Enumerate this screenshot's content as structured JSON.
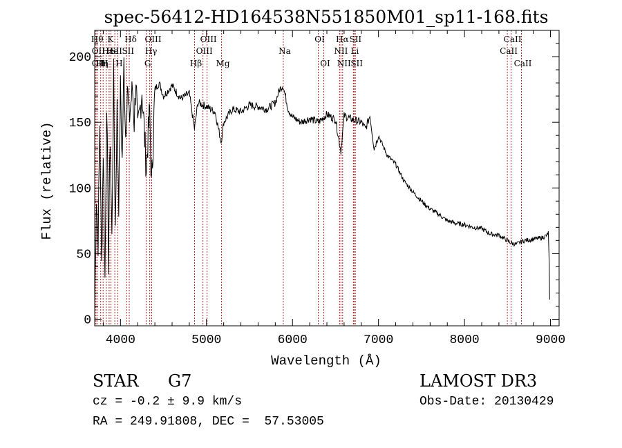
{
  "chart_data": {
    "type": "line",
    "title": "spec-56412-HD164538N551850M01_sp11-168.fits",
    "xlabel": "Wavelength (Å)",
    "ylabel": "Flux (relative)",
    "xlim": [
      3700,
      9100
    ],
    "ylim": [
      -5,
      220
    ],
    "xticks": [
      4000,
      5000,
      6000,
      7000,
      8000,
      9000
    ],
    "yticks": [
      0,
      50,
      100,
      150,
      200
    ],
    "grid": false,
    "series": [
      {
        "name": "flux",
        "x": [
          3700,
          3720,
          3740,
          3760,
          3780,
          3800,
          3820,
          3840,
          3860,
          3880,
          3900,
          3920,
          3940,
          3960,
          3980,
          4000,
          4020,
          4040,
          4060,
          4080,
          4100,
          4120,
          4140,
          4160,
          4180,
          4200,
          4250,
          4300,
          4340,
          4360,
          4400,
          4450,
          4500,
          4600,
          4700,
          4800,
          4860,
          4900,
          5000,
          5100,
          5170,
          5200,
          5300,
          5400,
          5500,
          5600,
          5700,
          5800,
          5850,
          5890,
          5950,
          6000,
          6100,
          6200,
          6300,
          6400,
          6500,
          6563,
          6600,
          6700,
          6800,
          6850,
          6900,
          6950,
          7000,
          7100,
          7200,
          7300,
          7400,
          7500,
          7600,
          7700,
          7800,
          7900,
          8000,
          8100,
          8200,
          8300,
          8400,
          8498,
          8542,
          8600,
          8662,
          8700,
          8800,
          8900,
          8960,
          8975,
          8985,
          8990
        ],
        "values": [
          5,
          95,
          60,
          150,
          40,
          130,
          30,
          170,
          45,
          140,
          60,
          185,
          70,
          160,
          90,
          175,
          120,
          195,
          140,
          180,
          150,
          165,
          175,
          150,
          185,
          140,
          175,
          115,
          160,
          100,
          175,
          180,
          170,
          178,
          168,
          172,
          145,
          165,
          162,
          158,
          135,
          150,
          160,
          158,
          163,
          162,
          160,
          165,
          175,
          178,
          160,
          154,
          150,
          153,
          150,
          156,
          152,
          128,
          155,
          152,
          150,
          145,
          155,
          130,
          140,
          125,
          118,
          105,
          97,
          90,
          84,
          80,
          75,
          73,
          72,
          70,
          69,
          65,
          64,
          60,
          58,
          57,
          59,
          60,
          61,
          62,
          64,
          66,
          40,
          15
        ]
      }
    ],
    "line_labels": [
      {
        "x": 3713,
        "label": "Hθ",
        "row": 0
      },
      {
        "x": 3727,
        "label": "OII",
        "row": 1
      },
      {
        "x": 3727,
        "label": "OII",
        "row": 2
      },
      {
        "x": 3770,
        "label": "Hη",
        "row": 2
      },
      {
        "x": 3798,
        "label": "H",
        "row": 2
      },
      {
        "x": 3835,
        "label": "Hε",
        "row": 1
      },
      {
        "x": 3868,
        "label": "K",
        "row": 0
      },
      {
        "x": 3889,
        "label": "He",
        "row": 1
      },
      {
        "x": 3934,
        "label": "SII",
        "row": 1
      },
      {
        "x": 3968,
        "label": "H",
        "row": 2
      },
      {
        "x": 4072,
        "label": "SII",
        "row": 1
      },
      {
        "x": 4102,
        "label": "Hδ",
        "row": 0
      },
      {
        "x": 4300,
        "label": "G",
        "row": 2
      },
      {
        "x": 4340,
        "label": "Hγ",
        "row": 1
      },
      {
        "x": 4363,
        "label": "OIII",
        "row": 0
      },
      {
        "x": 4861,
        "label": "Hβ",
        "row": 2
      },
      {
        "x": 4959,
        "label": "OIII",
        "row": 1
      },
      {
        "x": 5007,
        "label": "OIII",
        "row": 0
      },
      {
        "x": 5175,
        "label": "Mg",
        "row": 2
      },
      {
        "x": 5893,
        "label": "Na",
        "row": 1
      },
      {
        "x": 6300,
        "label": "OI",
        "row": 0
      },
      {
        "x": 6364,
        "label": "OI",
        "row": 2
      },
      {
        "x": 6548,
        "label": "NII",
        "row": 1
      },
      {
        "x": 6563,
        "label": "Hα",
        "row": 0
      },
      {
        "x": 6583,
        "label": "NII",
        "row": 2
      },
      {
        "x": 6708,
        "label": "Li",
        "row": 1
      },
      {
        "x": 6716,
        "label": "SII",
        "row": 0
      },
      {
        "x": 6731,
        "label": "SII",
        "row": 2
      },
      {
        "x": 8498,
        "label": "CaII",
        "row": 1
      },
      {
        "x": 8542,
        "label": "CaII",
        "row": 0
      },
      {
        "x": 8662,
        "label": "CaII",
        "row": 2
      }
    ]
  },
  "info": {
    "object_class": "STAR",
    "subclass": "G7",
    "survey": "LAMOST DR3",
    "cz": "cz = -0.2 ± 9.9 km/s",
    "obs_date": "Obs-Date: 20130429",
    "coords": "RA = 249.91808, DEC =  57.53005"
  }
}
